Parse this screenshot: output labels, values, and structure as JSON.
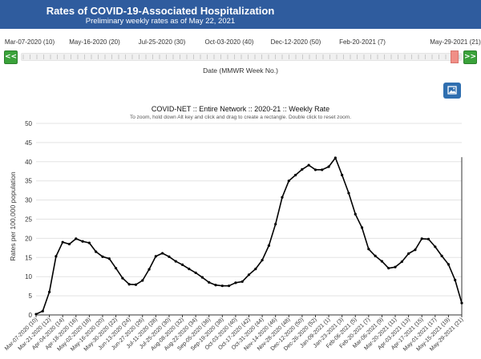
{
  "header": {
    "title": "Rates of COVID-19-Associated Hospitalization",
    "subtitle": "Preliminary weekly rates as of May 22, 2021"
  },
  "slider": {
    "tick_labels": [
      "Mar-07-2020 (10)",
      "May-16-2020 (20)",
      "Jul-25-2020 (30)",
      "Oct-03-2020 (40)",
      "Dec-12-2020 (50)",
      "Feb-20-2021 (7)",
      "May-29-2021 (21)"
    ],
    "prev_label": "<<",
    "next_label": ">>",
    "axis_label": "Date (MMWR Week No.)"
  },
  "colors": {
    "header": "#2f5c9e",
    "nav_button": "#3aa23a",
    "handle": "#f08e86",
    "line": "#000000"
  },
  "icons": {
    "image_button": "image-icon"
  },
  "chart_data": {
    "type": "line",
    "title": "COVID-NET :: Entire Network :: 2020-21 :: Weekly Rate",
    "subtitle": "To zoom, hold down Alt key and click and drag to create a rectangle. Double click to reset zoom.",
    "xlabel": "",
    "ylabel": "Rates per 100,000 population",
    "ylim": [
      0,
      50
    ],
    "yticks": [
      0,
      5,
      10,
      15,
      20,
      25,
      30,
      35,
      40,
      45,
      50
    ],
    "grid": "horizontal",
    "x": [
      "Mar-07-2020 (10)",
      "Mar-14-2020 (11)",
      "Mar-21-2020 (12)",
      "Mar-28-2020 (13)",
      "Apr-04-2020 (14)",
      "Apr-11-2020 (15)",
      "Apr-18-2020 (16)",
      "Apr-25-2020 (17)",
      "May-02-2020 (18)",
      "May-09-2020 (19)",
      "May-16-2020 (20)",
      "May-23-2020 (21)",
      "May-30-2020 (22)",
      "Jun-06-2020 (23)",
      "Jun-13-2020 (24)",
      "Jun-20-2020 (25)",
      "Jun-27-2020 (26)",
      "Jul-04-2020 (27)",
      "Jul-11-2020 (28)",
      "Jul-18-2020 (29)",
      "Jul-25-2020 (30)",
      "Aug-01-2020 (31)",
      "Aug-08-2020 (32)",
      "Aug-15-2020 (33)",
      "Aug-22-2020 (34)",
      "Aug-29-2020 (35)",
      "Sep-05-2020 (36)",
      "Sep-12-2020 (37)",
      "Sep-19-2020 (38)",
      "Sep-26-2020 (39)",
      "Oct-03-2020 (40)",
      "Oct-10-2020 (41)",
      "Oct-17-2020 (42)",
      "Oct-24-2020 (43)",
      "Oct-31-2020 (44)",
      "Nov-07-2020 (45)",
      "Nov-14-2020 (46)",
      "Nov-21-2020 (47)",
      "Nov-28-2020 (48)",
      "Dec-05-2020 (49)",
      "Dec-12-2020 (50)",
      "Dec-19-2020 (51)",
      "Dec-26-2020 (52)",
      "Jan-02-2021 (53)",
      "Jan-09-2021 (1)",
      "Jan-16-2021 (2)",
      "Jan-23-2021 (3)",
      "Jan-30-2021 (4)",
      "Feb-06-2021 (5)",
      "Feb-13-2021 (6)",
      "Feb-20-2021 (7)",
      "Feb-27-2021 (8)",
      "Mar-06-2021 (9)",
      "Mar-13-2021 (10)",
      "Mar-20-2021 (11)",
      "Mar-27-2021 (12)",
      "Apr-03-2021 (13)",
      "Apr-10-2021 (14)",
      "Apr-17-2021 (15)",
      "Apr-24-2021 (16)",
      "May-01-2021 (17)",
      "May-08-2021 (18)",
      "May-15-2021 (19)",
      "May-22-2021 (20)",
      "May-29-2021 (21)"
    ],
    "x_tick_labels": [
      "Mar-07-2020 (10)",
      "Mar-21-2020 (12)",
      "Apr-04-2020 (14)",
      "Apr-18-2020 (16)",
      "May-02-2020 (18)",
      "May-16-2020 (20)",
      "May-30-2020 (22)",
      "Jun-13-2020 (24)",
      "Jun-27-2020 (26)",
      "Jul-11-2020 (28)",
      "Jul-25-2020 (30)",
      "Aug-08-2020 (32)",
      "Aug-22-2020 (34)",
      "Sep-05-2020 (36)",
      "Sep-19-2020 (38)",
      "Oct-03-2020 (40)",
      "Oct-17-2020 (42)",
      "Oct-31-2020 (44)",
      "Nov-14-2020 (46)",
      "Nov-28-2020 (48)",
      "Dec-12-2020 (50)",
      "Dec-26-2020 (52)",
      "Jan-09-2021 (1)",
      "Jan-23-2021 (3)",
      "Feb-06-2021 (5)",
      "Feb-20-2021 (7)",
      "Mar-06-2021 (9)",
      "Mar-20-2021 (11)",
      "Apr-03-2021 (13)",
      "Apr-17-2021 (15)",
      "May-01-2021 (17)",
      "May-15-2021 (19)",
      "May-29-2021 (21)"
    ],
    "series": [
      {
        "values": [
          0.2,
          1.0,
          6.0,
          15.3,
          19.0,
          18.5,
          19.9,
          19.2,
          18.8,
          16.5,
          15.2,
          14.7,
          12.2,
          9.6,
          8.0,
          7.9,
          9.0,
          11.9,
          15.3,
          16.1,
          15.2,
          14.0,
          13.1,
          12.0,
          11.0,
          9.8,
          8.5,
          7.8,
          7.6,
          7.6,
          8.4,
          8.7,
          10.5,
          12.0,
          14.3,
          18.1,
          23.7,
          30.7,
          35.0,
          36.5,
          38.0,
          39.1,
          37.9,
          37.9,
          38.7,
          41.0,
          36.5,
          31.8,
          26.3,
          22.8,
          17.2,
          15.4,
          14.0,
          12.2,
          12.5,
          13.9,
          16.0,
          17.0,
          19.9,
          19.8,
          17.8,
          15.4,
          13.2,
          9.1,
          3.1
        ]
      }
    ]
  }
}
